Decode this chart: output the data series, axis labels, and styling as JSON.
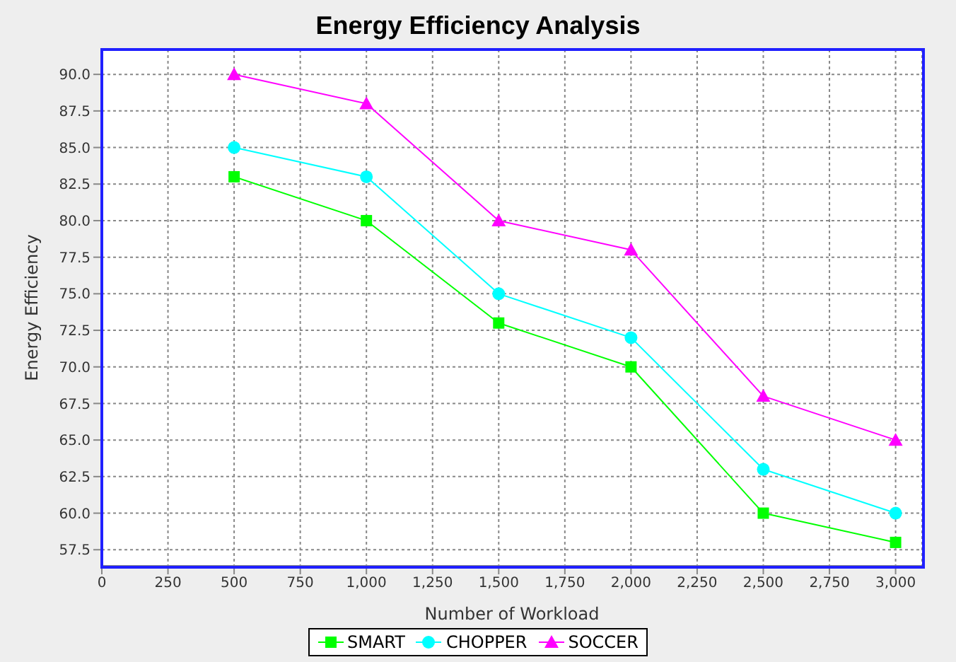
{
  "chart_data": {
    "type": "line",
    "title": "Energy Efficiency Analysis",
    "xlabel": "Number of Workload",
    "ylabel": "Energy Efficiency",
    "x": [
      500,
      1000,
      1500,
      2000,
      2500,
      3000
    ],
    "series": [
      {
        "name": "SMART",
        "color": "#00ff00",
        "marker": "square",
        "values": [
          83,
          80,
          73,
          70,
          60,
          58
        ]
      },
      {
        "name": "CHOPPER",
        "color": "#00ffff",
        "marker": "circle",
        "values": [
          85,
          83,
          75,
          72,
          63,
          60
        ]
      },
      {
        "name": "SOCCER",
        "color": "#ff00ff",
        "marker": "triangle",
        "values": [
          90,
          88,
          80,
          78,
          68,
          65
        ]
      }
    ],
    "xlim": [
      0,
      3100
    ],
    "xticks": [
      0,
      250,
      500,
      750,
      {
        "value": 1000,
        "label": "1,000"
      },
      {
        "value": 1250,
        "label": "1,250"
      },
      {
        "value": 1500,
        "label": "1,500"
      },
      {
        "value": 1750,
        "label": "1,750"
      },
      {
        "value": 2000,
        "label": "2,000"
      },
      {
        "value": 2250,
        "label": "2,250"
      },
      {
        "value": 2500,
        "label": "2,500"
      },
      {
        "value": 2750,
        "label": "2,750"
      },
      {
        "value": 3000,
        "label": "3,000"
      }
    ],
    "ylim": [
      56.4,
      91.7
    ],
    "yticks": [
      {
        "value": 57.5,
        "label": "57.5"
      },
      {
        "value": 60,
        "label": "60.0"
      },
      {
        "value": 62.5,
        "label": "62.5"
      },
      {
        "value": 65,
        "label": "65.0"
      },
      {
        "value": 67.5,
        "label": "67.5"
      },
      {
        "value": 70,
        "label": "70.0"
      },
      {
        "value": 72.5,
        "label": "72.5"
      },
      {
        "value": 75,
        "label": "75.0"
      },
      {
        "value": 77.5,
        "label": "77.5"
      },
      {
        "value": 80,
        "label": "80.0"
      },
      {
        "value": 82.5,
        "label": "82.5"
      },
      {
        "value": 85,
        "label": "85.0"
      },
      {
        "value": 87.5,
        "label": "87.5"
      },
      {
        "value": 90,
        "label": "90.0"
      }
    ],
    "grid": true,
    "legend": "bottom",
    "line_style": "solid"
  }
}
